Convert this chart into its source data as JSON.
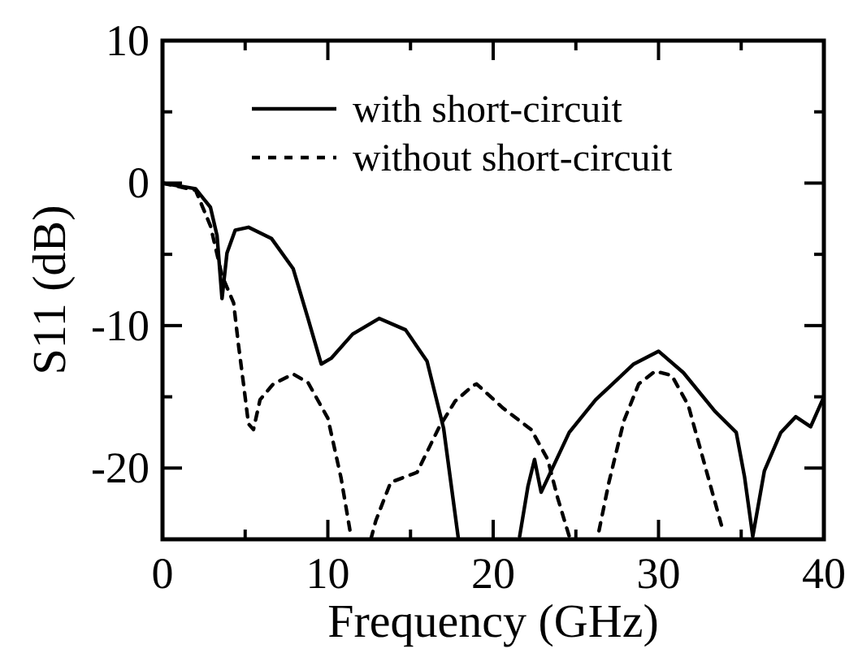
{
  "chart_data": {
    "type": "line",
    "xlabel": "Frequency (GHz)",
    "ylabel": "S11 (dB)",
    "xlim": [
      0,
      40
    ],
    "ylim": [
      -25,
      10
    ],
    "xticks": [
      0,
      {
        "value": 5,
        "label": null
      },
      10,
      {
        "value": 15,
        "label": null
      },
      20,
      {
        "value": 25,
        "label": null
      },
      30,
      {
        "value": 35,
        "label": null
      },
      40
    ],
    "yticks": [
      10,
      {
        "value": 5,
        "label": null
      },
      0,
      {
        "value": -5,
        "label": null
      },
      -10,
      {
        "value": -15,
        "label": null
      },
      -20,
      {
        "value": -25,
        "label": null
      }
    ],
    "legend": "top right",
    "grid": false,
    "marker": "none",
    "series": [
      {
        "name": "with short-circuit",
        "color": "#000000",
        "line_style": "solid",
        "x": [
          0,
          2.0,
          2.9,
          3.3,
          3.6,
          3.9,
          4.4,
          5.2,
          6.6,
          7.9,
          8.8,
          9.6,
          10.2,
          11.5,
          13.1,
          14.7,
          16.0,
          17.0,
          17.9,
          null,
          21.6,
          22.1,
          22.5,
          22.9,
          24.6,
          26.2,
          28.5,
          30.0,
          31.5,
          33.4,
          34.7,
          35.2,
          35.7,
          36.4,
          37.4,
          38.3,
          39.2,
          40
        ],
        "values": [
          0,
          -0.4,
          -1.7,
          -3.7,
          -8.1,
          -4.9,
          -3.3,
          -3.1,
          -3.9,
          -6.0,
          -9.5,
          -12.7,
          -12.3,
          -10.6,
          -9.5,
          -10.3,
          -12.5,
          -17.2,
          -25,
          null,
          -24.8,
          -21.3,
          -19.4,
          -21.7,
          -17.5,
          -15.2,
          -12.7,
          -11.8,
          -13.3,
          -16.0,
          -17.5,
          -20.6,
          -24.8,
          -20.2,
          -17.5,
          -16.4,
          -17.1,
          -15.0
        ]
      },
      {
        "name": "without short-circuit",
        "color": "#000000",
        "line_style": "dashed",
        "x": [
          0,
          2.0,
          2.9,
          3.6,
          4.3,
          4.6,
          4.9,
          5.2,
          5.5,
          5.9,
          6.7,
          7.9,
          8.8,
          10.0,
          10.8,
          11.4,
          null,
          12.6,
          12.9,
          13.8,
          15.4,
          16.7,
          17.7,
          18.8,
          19.0,
          20.6,
          22.3,
          23.3,
          23.9,
          24.6,
          null,
          26.4,
          27.0,
          27.9,
          28.8,
          29.8,
          30.8,
          31.8,
          32.8,
          33.8
        ],
        "values": [
          0,
          -0.5,
          -3.0,
          -6.5,
          -8.4,
          -11.4,
          -14.1,
          -16.9,
          -17.3,
          -15.2,
          -14.1,
          -13.4,
          -14.0,
          -16.5,
          -20.7,
          -24.8,
          null,
          -25,
          -23.7,
          -21.0,
          -20.3,
          -17.2,
          -15.3,
          -14.2,
          -14.1,
          -15.8,
          -17.3,
          -19.4,
          -22.1,
          -24.8,
          null,
          -24.4,
          -21.0,
          -16.7,
          -14.1,
          -13.2,
          -13.5,
          -15.6,
          -19.8,
          -24.0
        ]
      }
    ]
  }
}
